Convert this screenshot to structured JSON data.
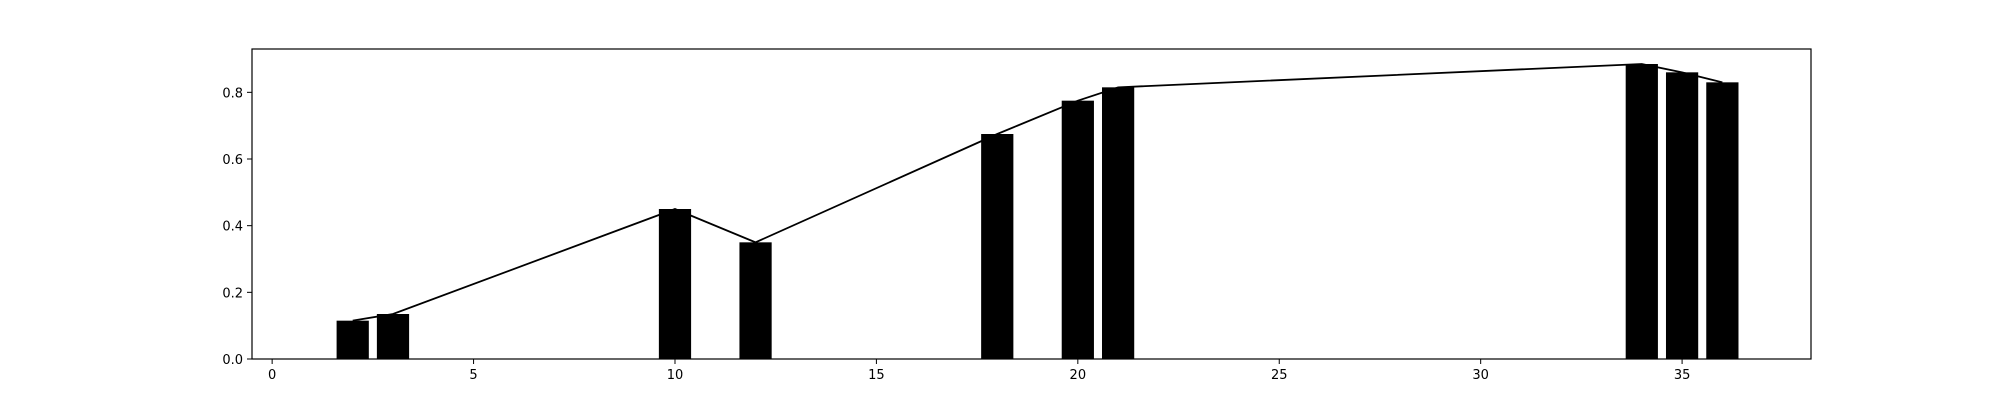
{
  "chart_data": {
    "type": "bar",
    "title": "",
    "xlabel": "",
    "ylabel": "",
    "xlim": [
      -0.5,
      38.2
    ],
    "ylim": [
      0,
      0.93
    ],
    "grid": false,
    "bar_width": 0.8,
    "x": [
      2,
      3,
      10,
      12,
      18,
      20,
      21,
      34,
      35,
      36
    ],
    "values": [
      0.115,
      0.135,
      0.45,
      0.35,
      0.675,
      0.775,
      0.815,
      0.885,
      0.86,
      0.83
    ],
    "overlay_line": true,
    "xticks": [
      0,
      5,
      10,
      15,
      20,
      25,
      30,
      35
    ],
    "yticks": [
      0.0,
      0.2,
      0.4,
      0.6,
      0.8
    ],
    "xtick_labels": [
      "0",
      "5",
      "10",
      "15",
      "20",
      "25",
      "30",
      "35"
    ],
    "ytick_labels": [
      "0.0",
      "0.2",
      "0.4",
      "0.6",
      "0.8"
    ],
    "colors": {
      "bar": "#000000",
      "line": "#000000",
      "axes": "#000000"
    }
  }
}
